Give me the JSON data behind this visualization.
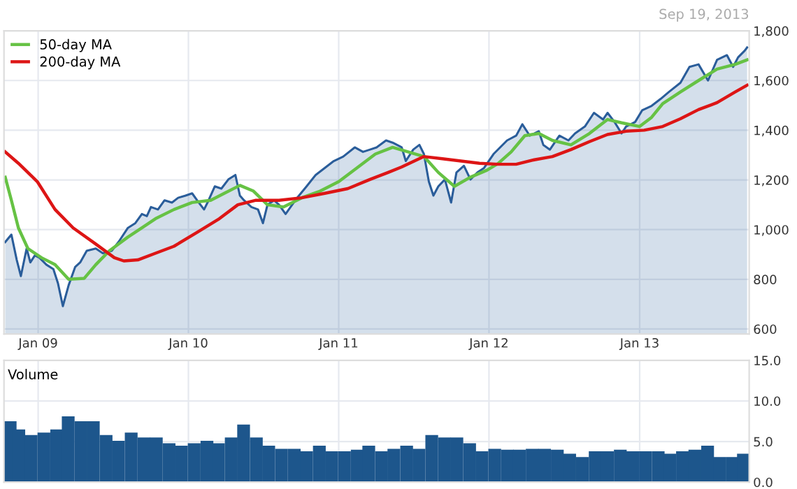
{
  "chart_data": [
    {
      "type": "line",
      "subtitle": "Sep 19, 2013",
      "legend": "top left",
      "grid": true,
      "xlim": [
        "2008-10-10",
        "2013-09-24"
      ],
      "ylim": [
        580,
        1800
      ],
      "xticks": [
        {
          "value": "2009-01-01",
          "label": "Jan 09"
        },
        {
          "value": "2010-01-01",
          "label": "Jan 10"
        },
        {
          "value": "2011-01-01",
          "label": "Jan 11"
        },
        {
          "value": "2012-01-01",
          "label": "Jan 12"
        },
        {
          "value": "2013-01-01",
          "label": "Jan 13"
        }
      ],
      "yticks": [
        {
          "value": 600,
          "label": "600"
        },
        {
          "value": 800,
          "label": "800"
        },
        {
          "value": 1000,
          "label": "1,000"
        },
        {
          "value": 1200,
          "label": "1,200"
        },
        {
          "value": 1400,
          "label": "1,400"
        },
        {
          "value": 1600,
          "label": "1,600"
        },
        {
          "value": 1800,
          "label": "1,800"
        }
      ],
      "series": [
        {
          "type": "area",
          "color": "#2a5d9a",
          "x": [
            "2008-10-13",
            "2008-10-28",
            "2008-11-10",
            "2008-11-20",
            "2008-12-04",
            "2008-12-13",
            "2008-12-24",
            "2009-01-04",
            "2009-01-21",
            "2009-02-07",
            "2009-02-18",
            "2009-03-02",
            "2009-03-16",
            "2009-04-01",
            "2009-04-13",
            "2009-04-29",
            "2009-05-21",
            "2009-06-07",
            "2009-06-29",
            "2009-07-16",
            "2009-08-07",
            "2009-08-25",
            "2009-09-10",
            "2009-09-22",
            "2009-10-02",
            "2009-10-19",
            "2009-11-04",
            "2009-11-22",
            "2009-12-07",
            "2009-12-25",
            "2010-01-10",
            "2010-01-22",
            "2010-02-08",
            "2010-02-19",
            "2010-03-06",
            "2010-03-22",
            "2010-04-08",
            "2010-04-25",
            "2010-05-06",
            "2010-05-16",
            "2010-06-03",
            "2010-06-19",
            "2010-07-01",
            "2010-07-12",
            "2010-07-28",
            "2010-08-09",
            "2010-08-25",
            "2010-09-06",
            "2010-09-22",
            "2010-10-15",
            "2010-11-06",
            "2010-11-28",
            "2010-12-20",
            "2011-01-12",
            "2011-02-09",
            "2011-03-01",
            "2011-03-18",
            "2011-04-03",
            "2011-04-26",
            "2011-05-12",
            "2011-06-03",
            "2011-06-13",
            "2011-07-01",
            "2011-07-16",
            "2011-07-27",
            "2011-08-08",
            "2011-08-19",
            "2011-08-31",
            "2011-09-16",
            "2011-10-01",
            "2011-10-14",
            "2011-11-01",
            "2011-11-17",
            "2011-12-04",
            "2011-12-20",
            "2012-01-12",
            "2012-02-14",
            "2012-03-07",
            "2012-03-22",
            "2012-04-09",
            "2012-05-01",
            "2012-05-12",
            "2012-05-28",
            "2012-06-20",
            "2012-07-12",
            "2012-07-28",
            "2012-08-21",
            "2012-09-12",
            "2012-10-04",
            "2012-10-15",
            "2012-11-01",
            "2012-11-18",
            "2012-11-29",
            "2012-12-21",
            "2013-01-07",
            "2013-01-30",
            "2013-02-21",
            "2013-03-13",
            "2013-04-10",
            "2013-05-02",
            "2013-05-24",
            "2013-06-16",
            "2013-07-08",
            "2013-08-01",
            "2013-08-16",
            "2013-08-28",
            "2013-09-13",
            "2013-09-19"
          ],
          "values": [
            950,
            980,
            878,
            813,
            924,
            868,
            896,
            887,
            859,
            841,
            785,
            692,
            776,
            850,
            868,
            915,
            924,
            905,
            915,
            952,
            1007,
            1026,
            1063,
            1054,
            1091,
            1081,
            1118,
            1109,
            1128,
            1137,
            1146,
            1118,
            1081,
            1118,
            1174,
            1165,
            1202,
            1220,
            1137,
            1118,
            1091,
            1081,
            1026,
            1100,
            1118,
            1100,
            1063,
            1091,
            1128,
            1174,
            1220,
            1248,
            1276,
            1294,
            1331,
            1313,
            1322,
            1331,
            1359,
            1350,
            1331,
            1276,
            1322,
            1341,
            1304,
            1193,
            1137,
            1174,
            1202,
            1109,
            1230,
            1257,
            1202,
            1230,
            1248,
            1304,
            1359,
            1378,
            1424,
            1378,
            1396,
            1341,
            1322,
            1378,
            1359,
            1387,
            1415,
            1470,
            1443,
            1470,
            1433,
            1387,
            1415,
            1433,
            1480,
            1498,
            1526,
            1554,
            1591,
            1655,
            1665,
            1600,
            1683,
            1702,
            1655,
            1693,
            1720,
            1733
          ]
        },
        {
          "type": "line",
          "name": "50-day MA",
          "color": "#66c244",
          "x": [
            "2008-10-13",
            "2008-10-28",
            "2008-11-14",
            "2008-12-07",
            "2009-01-09",
            "2009-02-11",
            "2009-03-16",
            "2009-04-23",
            "2009-05-21",
            "2009-06-23",
            "2009-08-07",
            "2009-09-10",
            "2009-10-13",
            "2009-11-27",
            "2010-01-10",
            "2010-02-24",
            "2010-03-29",
            "2010-05-06",
            "2010-06-08",
            "2010-07-12",
            "2010-08-20",
            "2010-10-03",
            "2010-11-17",
            "2011-01-01",
            "2011-02-14",
            "2011-03-31",
            "2011-05-12",
            "2011-07-27",
            "2011-08-31",
            "2011-10-09",
            "2011-11-17",
            "2011-12-27",
            "2012-01-23",
            "2012-02-24",
            "2012-03-28",
            "2012-05-01",
            "2012-06-03",
            "2012-07-18",
            "2012-09-01",
            "2012-10-15",
            "2012-11-18",
            "2013-01-01",
            "2013-01-30",
            "2013-02-26",
            "2013-04-10",
            "2013-05-24",
            "2013-07-08",
            "2013-08-21",
            "2013-09-19"
          ],
          "values": [
            1211,
            1118,
            1007,
            924,
            887,
            859,
            800,
            804,
            859,
            915,
            970,
            1007,
            1044,
            1081,
            1109,
            1118,
            1146,
            1178,
            1155,
            1100,
            1091,
            1128,
            1155,
            1193,
            1248,
            1304,
            1331,
            1294,
            1230,
            1174,
            1211,
            1239,
            1266,
            1313,
            1378,
            1387,
            1359,
            1341,
            1387,
            1443,
            1430,
            1415,
            1452,
            1507,
            1554,
            1600,
            1646,
            1665,
            1683
          ]
        },
        {
          "type": "line",
          "name": "200-day MA",
          "color": "#dd1515",
          "x": [
            "2008-10-13",
            "2008-11-14",
            "2008-12-30",
            "2009-02-11",
            "2009-03-27",
            "2009-05-21",
            "2009-07-05",
            "2009-07-28",
            "2009-08-31",
            "2009-10-13",
            "2009-11-27",
            "2010-01-22",
            "2010-03-17",
            "2010-05-01",
            "2010-06-14",
            "2010-08-09",
            "2010-10-03",
            "2010-11-28",
            "2011-01-23",
            "2011-03-18",
            "2011-05-01",
            "2011-06-03",
            "2011-07-27",
            "2011-09-10",
            "2011-10-25",
            "2011-12-09",
            "2012-01-23",
            "2012-03-07",
            "2012-04-20",
            "2012-06-03",
            "2012-07-18",
            "2012-09-01",
            "2012-10-15",
            "2012-11-29",
            "2013-01-12",
            "2013-02-26",
            "2013-04-10",
            "2013-05-24",
            "2013-07-08",
            "2013-08-21",
            "2013-09-19"
          ],
          "values": [
            1313,
            1267,
            1193,
            1081,
            1007,
            942,
            887,
            874,
            878,
            905,
            933,
            989,
            1044,
            1100,
            1118,
            1118,
            1128,
            1146,
            1165,
            1202,
            1230,
            1252,
            1294,
            1285,
            1276,
            1267,
            1263,
            1263,
            1281,
            1294,
            1322,
            1354,
            1383,
            1396,
            1400,
            1415,
            1446,
            1483,
            1511,
            1554,
            1581
          ]
        }
      ]
    },
    {
      "type": "bar",
      "title": "Volume",
      "grid": true,
      "tick_labels": "y",
      "xlim": [
        "2008-10-10",
        "2013-09-24"
      ],
      "ylim": [
        0,
        15
      ],
      "xticks": [
        {
          "value": "2009-01-01",
          "label": null
        },
        {
          "value": "2010-01-01",
          "label": null
        },
        {
          "value": "2011-01-01",
          "label": null
        },
        {
          "value": "2012-01-01",
          "label": null
        },
        {
          "value": "2013-01-01",
          "label": null
        }
      ],
      "yticks": [
        {
          "value": 0,
          "label": "0.0"
        },
        {
          "value": 5,
          "label": "5.0"
        },
        {
          "value": 10,
          "label": "10.0"
        },
        {
          "value": 15,
          "label": "15.0"
        }
      ],
      "series": [
        {
          "color": "#1d568c",
          "x": [
            "2008-10-25",
            "2008-11-15",
            "2008-12-15",
            "2009-01-15",
            "2009-02-15",
            "2009-03-15",
            "2009-04-15",
            "2009-05-15",
            "2009-06-15",
            "2009-07-15",
            "2009-08-15",
            "2009-09-15",
            "2009-10-15",
            "2009-11-15",
            "2009-12-15",
            "2010-01-15",
            "2010-02-15",
            "2010-03-15",
            "2010-04-15",
            "2010-05-15",
            "2010-06-15",
            "2010-07-15",
            "2010-08-15",
            "2010-09-15",
            "2010-10-15",
            "2010-11-15",
            "2010-12-15",
            "2011-01-15",
            "2011-02-15",
            "2011-03-15",
            "2011-04-15",
            "2011-05-15",
            "2011-06-15",
            "2011-07-15",
            "2011-08-15",
            "2011-09-15",
            "2011-10-15",
            "2011-11-15",
            "2011-12-15",
            "2012-01-15",
            "2012-02-15",
            "2012-03-15",
            "2012-04-15",
            "2012-05-15",
            "2012-06-15",
            "2012-07-15",
            "2012-08-15",
            "2012-09-15",
            "2012-10-15",
            "2012-11-15",
            "2012-12-15",
            "2013-01-15",
            "2013-02-15",
            "2013-03-15",
            "2013-04-15",
            "2013-05-15",
            "2013-06-15",
            "2013-07-15",
            "2013-08-15",
            "2013-09-10"
          ],
          "values": [
            7.5,
            6.5,
            5.8,
            6.1,
            6.5,
            8.1,
            7.5,
            7.5,
            5.8,
            5.1,
            6.1,
            5.5,
            5.5,
            4.8,
            4.5,
            4.8,
            5.1,
            4.8,
            5.5,
            7.1,
            5.5,
            4.5,
            4.1,
            4.1,
            3.8,
            4.5,
            3.8,
            3.8,
            4.0,
            4.5,
            3.8,
            4.1,
            4.5,
            4.1,
            5.8,
            5.5,
            5.5,
            4.8,
            3.8,
            4.1,
            4.0,
            4.0,
            4.1,
            4.1,
            4.0,
            3.5,
            3.1,
            3.8,
            3.8,
            4.0,
            3.8,
            3.8,
            3.8,
            3.5,
            3.8,
            4.0,
            4.5,
            3.1,
            3.1,
            3.5
          ]
        }
      ]
    }
  ]
}
